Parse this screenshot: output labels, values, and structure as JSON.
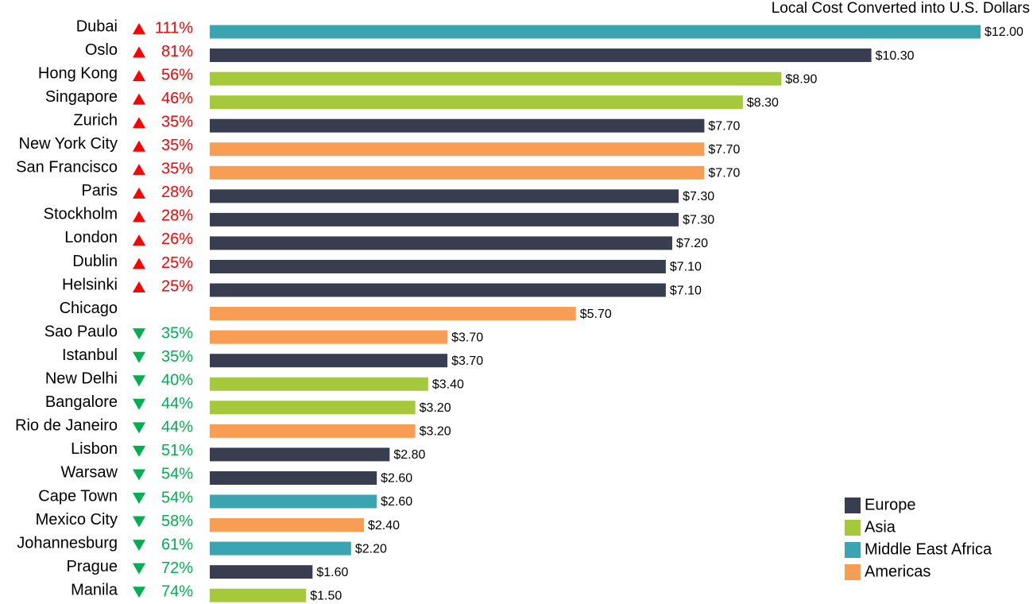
{
  "chart_data": {
    "type": "bar",
    "orientation": "horizontal",
    "title": "Local Cost Converted into U.S. Dollars",
    "categories": [
      "Dubai",
      "Oslo",
      "Hong Kong",
      "Singapore",
      "Zurich",
      "New York City",
      "San Francisco",
      "Paris",
      "Stockholm",
      "London",
      "Dublin",
      "Helsinki",
      "Chicago",
      "Sao Paulo",
      "Istanbul",
      "New Delhi",
      "Bangalore",
      "Rio de Janeiro",
      "Lisbon",
      "Warsaw",
      "Cape Town",
      "Mexico City",
      "Johannesburg",
      "Prague",
      "Manila"
    ],
    "values": [
      12.0,
      10.3,
      8.9,
      8.3,
      7.7,
      7.7,
      7.7,
      7.3,
      7.3,
      7.2,
      7.1,
      7.1,
      5.7,
      3.7,
      3.7,
      3.4,
      3.2,
      3.2,
      2.8,
      2.6,
      2.6,
      2.4,
      2.2,
      1.6,
      1.5
    ],
    "value_labels": [
      "$12.00",
      "$10.30",
      "$8.90",
      "$8.30",
      "$7.70",
      "$7.70",
      "$7.70",
      "$7.30",
      "$7.30",
      "$7.20",
      "$7.10",
      "$7.10",
      "$5.70",
      "$3.70",
      "$3.70",
      "$3.40",
      "$3.20",
      "$3.20",
      "$2.80",
      "$2.60",
      "$2.60",
      "$2.40",
      "$2.20",
      "$1.60",
      "$1.50"
    ],
    "region": [
      "Middle East Africa",
      "Europe",
      "Asia",
      "Asia",
      "Europe",
      "Americas",
      "Americas",
      "Europe",
      "Europe",
      "Europe",
      "Europe",
      "Europe",
      "Americas",
      "Americas",
      "Europe",
      "Asia",
      "Asia",
      "Americas",
      "Europe",
      "Europe",
      "Middle East Africa",
      "Americas",
      "Middle East Africa",
      "Europe",
      "Asia"
    ],
    "series": [
      {
        "name": "Europe",
        "color": "#383e4f"
      },
      {
        "name": "Asia",
        "color": "#a6c93b"
      },
      {
        "name": "Middle East Africa",
        "color": "#3aa5b0"
      },
      {
        "name": "Americas",
        "color": "#f79e54"
      }
    ],
    "change": {
      "values": [
        111,
        81,
        56,
        46,
        35,
        35,
        35,
        28,
        28,
        26,
        25,
        25,
        null,
        -35,
        -35,
        -40,
        -44,
        -44,
        -51,
        -54,
        -54,
        -58,
        -61,
        -72,
        -74
      ],
      "value_labels": [
        "111%",
        "81%",
        "56%",
        "46%",
        "35%",
        "35%",
        "35%",
        "28%",
        "28%",
        "26%",
        "25%",
        "25%",
        null,
        "35%",
        "35%",
        "40%",
        "44%",
        "44%",
        "51%",
        "54%",
        "54%",
        "58%",
        "61%",
        "72%",
        "74%"
      ],
      "up_color": "#ff0000",
      "down_color": "#00b050"
    },
    "xlim": [
      0,
      12
    ],
    "legend_position": "lower right"
  }
}
